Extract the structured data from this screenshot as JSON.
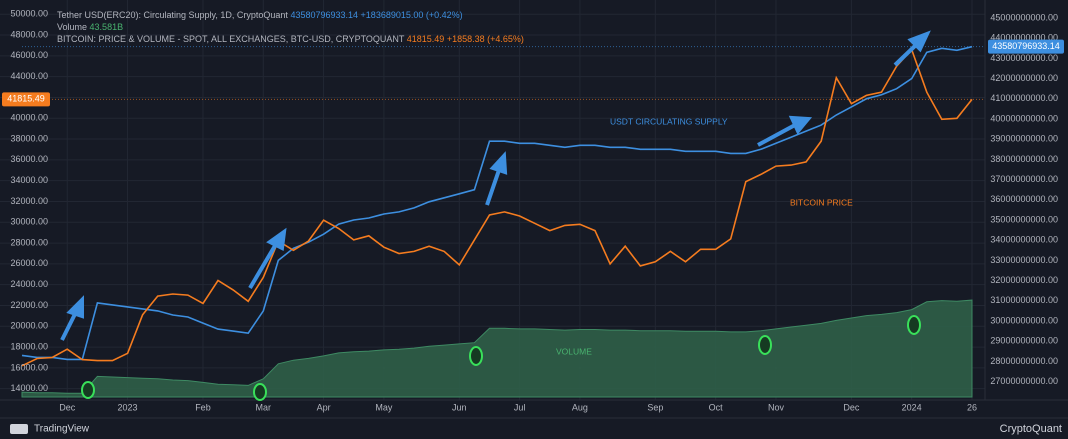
{
  "chart_data": {
    "type": "line",
    "categories": [
      null,
      null,
      null,
      "Dec",
      null,
      null,
      null,
      "2023",
      null,
      null,
      null,
      null,
      "Feb",
      null,
      null,
      null,
      "Mar",
      null,
      null,
      null,
      "Apr",
      null,
      null,
      null,
      "May",
      null,
      null,
      null,
      null,
      "Jun",
      null,
      null,
      null,
      "Jul",
      null,
      null,
      null,
      "Aug",
      null,
      null,
      null,
      null,
      "Sep",
      null,
      null,
      null,
      "Oct",
      null,
      null,
      null,
      "Nov",
      null,
      null,
      null,
      null,
      "Dec",
      null,
      null,
      null,
      "2024",
      null,
      null,
      null,
      "26"
    ],
    "series": [
      {
        "name": "Tether USD(ERC20): Circulating Supply, 1D, CryptoQuant",
        "color": "#3d8fe0",
        "axis": "y2",
        "value_label": "43580796933.14",
        "change": "+183689015.00 (+0.42%)",
        "values": [
          28300000000,
          28200000000,
          28200000000,
          28100000000,
          28100000000,
          30900000000,
          30800000000,
          30700000000,
          30600000000,
          30500000000,
          30300000000,
          30200000000,
          29900000000,
          29600000000,
          29500000000,
          29400000000,
          30500000000,
          33000000000,
          33600000000,
          33900000000,
          34300000000,
          34800000000,
          35000000000,
          35100000000,
          35300000000,
          35400000000,
          35600000000,
          35900000000,
          36100000000,
          36300000000,
          36500000000,
          38900000000,
          38900000000,
          38800000000,
          38800000000,
          38700000000,
          38600000000,
          38700000000,
          38700000000,
          38600000000,
          38600000000,
          38500000000,
          38500000000,
          38500000000,
          38400000000,
          38400000000,
          38400000000,
          38300000000,
          38300000000,
          38500000000,
          38800000000,
          39100000000,
          39400000000,
          39700000000,
          40200000000,
          40600000000,
          41000000000,
          41200000000,
          41500000000,
          42000000000,
          43300000000,
          43500000000,
          43400000000,
          43580796933.14
        ]
      },
      {
        "name": "Volume",
        "color": "#2f5f48",
        "type": "area",
        "axis": "volume",
        "value_label": "43.581B",
        "values": [
          28.3,
          28.2,
          28.2,
          28.1,
          28.1,
          30.9,
          30.8,
          30.7,
          30.6,
          30.5,
          30.3,
          30.2,
          29.9,
          29.6,
          29.5,
          29.4,
          30.5,
          33.0,
          33.6,
          33.9,
          34.3,
          34.8,
          35.0,
          35.1,
          35.3,
          35.4,
          35.6,
          35.9,
          36.1,
          36.3,
          36.5,
          38.9,
          38.9,
          38.8,
          38.8,
          38.7,
          38.6,
          38.7,
          38.7,
          38.6,
          38.6,
          38.5,
          38.5,
          38.5,
          38.4,
          38.4,
          38.4,
          38.3,
          38.3,
          38.5,
          38.8,
          39.1,
          39.4,
          39.7,
          40.2,
          40.6,
          41.0,
          41.2,
          41.5,
          42.0,
          43.3,
          43.5,
          43.4,
          43.581
        ]
      },
      {
        "name": "BITCOIN: PRICE & VOLUME - SPOT, ALL EXCHANGES, BTC-USD, CRYPTOQUANT",
        "color": "#f57c1f",
        "value_label": "41815.49",
        "change": "+1858.38 (+4.65%)",
        "values": [
          16200,
          16900,
          17000,
          17800,
          16800,
          16700,
          16700,
          17400,
          21100,
          22900,
          23100,
          23000,
          22200,
          24400,
          23500,
          22400,
          24700,
          28200,
          27300,
          28200,
          30200,
          29400,
          28300,
          28700,
          27600,
          27000,
          27200,
          27700,
          27200,
          25900,
          28300,
          30700,
          31000,
          30600,
          29900,
          29200,
          29700,
          29800,
          29200,
          26000,
          27700,
          25800,
          26200,
          27200,
          26200,
          27400,
          27400,
          28400,
          33900,
          34600,
          35400,
          35500,
          35800,
          37800,
          43900,
          41400,
          42200,
          42500,
          45000,
          46600,
          42500,
          39900,
          40000,
          41815.49
        ]
      }
    ],
    "ylim": [
      13200,
      50600
    ],
    "yticks": [
      {
        "value": 14000,
        "label": "14000.00"
      },
      {
        "value": 16000,
        "label": "16000.00"
      },
      {
        "value": 18000,
        "label": "18000.00"
      },
      {
        "value": 20000,
        "label": "20000.00"
      },
      {
        "value": 22000,
        "label": "22000.00"
      },
      {
        "value": 24000,
        "label": "24000.00"
      },
      {
        "value": 26000,
        "label": "26000.00"
      },
      {
        "value": 28000,
        "label": "28000.00"
      },
      {
        "value": 30000,
        "label": "30000.00"
      },
      {
        "value": 32000,
        "label": "32000.00"
      },
      {
        "value": 34000,
        "label": "34000.00"
      },
      {
        "value": 36000,
        "label": "36000.00"
      },
      {
        "value": 38000,
        "label": "38000.00"
      },
      {
        "value": 40000,
        "label": "40000.00"
      },
      {
        "value": 42000,
        "label": "42000.00"
      },
      {
        "value": 44000,
        "label": "44000.00"
      },
      {
        "value": 46000,
        "label": "46000.00"
      },
      {
        "value": 48000,
        "label": "48000.00"
      },
      {
        "value": 50000,
        "label": "50000.00"
      }
    ],
    "y2lim": [
      26240000000,
      45495000000
    ],
    "y2ticks": [
      {
        "value": 27000000000,
        "label": "27000000000.00"
      },
      {
        "value": 28000000000,
        "label": "28000000000.00"
      },
      {
        "value": 29000000000,
        "label": "29000000000.00"
      },
      {
        "value": 30000000000,
        "label": "30000000000.00"
      },
      {
        "value": 31000000000,
        "label": "31000000000.00"
      },
      {
        "value": 32000000000,
        "label": "32000000000.00"
      },
      {
        "value": 33000000000,
        "label": "33000000000.00"
      },
      {
        "value": 34000000000,
        "label": "34000000000.00"
      },
      {
        "value": 35000000000,
        "label": "35000000000.00"
      },
      {
        "value": 36000000000,
        "label": "36000000000.00"
      },
      {
        "value": 37000000000,
        "label": "37000000000.00"
      },
      {
        "value": 38000000000,
        "label": "38000000000.00"
      },
      {
        "value": 39000000000,
        "label": "39000000000.00"
      },
      {
        "value": 40000000000,
        "label": "40000000000.00"
      },
      {
        "value": 41000000000,
        "label": "41000000000.00"
      },
      {
        "value": 42000000000,
        "label": "42000000000.00"
      },
      {
        "value": 43000000000,
        "label": "43000000000.00"
      },
      {
        "value": 44000000000,
        "label": "44000000000.00"
      },
      {
        "value": 45000000000,
        "label": "45000000000.00"
      }
    ],
    "vlim": [
      27.48,
      92.1
    ],
    "grid": true,
    "annotations": [
      {
        "text": "USDT CIRCULATING SUPPLY",
        "color": "#3d8fe0"
      },
      {
        "text": "BITCOIN PRICE",
        "color": "#f57c1f"
      },
      {
        "text": "VOLUME",
        "color": "#49b36f"
      }
    ],
    "watermarks": [
      "TradingView",
      "CryptoQuant"
    ]
  }
}
